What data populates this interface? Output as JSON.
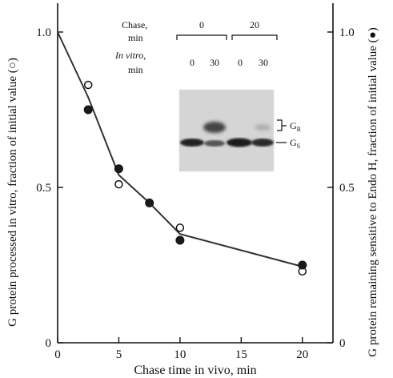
{
  "chart_data": {
    "type": "scatter",
    "xlabel": "Chase time in vivo, min",
    "ylabel_left": "G protein processed in vitro, fraction of initial value (○)",
    "ylabel_right": "G protein remaining sensitive to Endo H, fraction of initial value (●)",
    "xlim": [
      0,
      22.5
    ],
    "ylim": [
      0,
      1.0
    ],
    "x_ticks": [
      0,
      5,
      10,
      15,
      20
    ],
    "y_ticks_left": [
      "0",
      "0.5",
      "1.0"
    ],
    "y_ticks_right": [
      "0",
      "0.5",
      "1.0"
    ],
    "grid": false,
    "series": [
      {
        "name": "○",
        "marker": "open-circle",
        "points": [
          [
            2.5,
            0.83
          ],
          [
            5,
            0.51
          ],
          [
            10,
            0.37
          ],
          [
            20,
            0.23
          ]
        ]
      },
      {
        "name": "●",
        "marker": "filled-circle",
        "points": [
          [
            2.5,
            0.75
          ],
          [
            5,
            0.56
          ],
          [
            7.5,
            0.45
          ],
          [
            10,
            0.33
          ],
          [
            20,
            0.25
          ]
        ]
      }
    ],
    "fit_line": [
      [
        0,
        1.0
      ],
      [
        2.5,
        0.79
      ],
      [
        5,
        0.54
      ],
      [
        7.5,
        0.45
      ],
      [
        10,
        0.35
      ],
      [
        20,
        0.245
      ]
    ]
  },
  "inset": {
    "chase_label_1": "Chase,",
    "chase_label_2": "min",
    "invitro_label_1": "In vitro,",
    "invitro_label_2": "min",
    "chase_values": [
      "0",
      "20"
    ],
    "invitro_values": [
      "0",
      "30",
      "0",
      "30"
    ],
    "band_r_base": "G",
    "band_r_sub": "R",
    "band_s_base": "G",
    "band_s_sub": "S"
  }
}
